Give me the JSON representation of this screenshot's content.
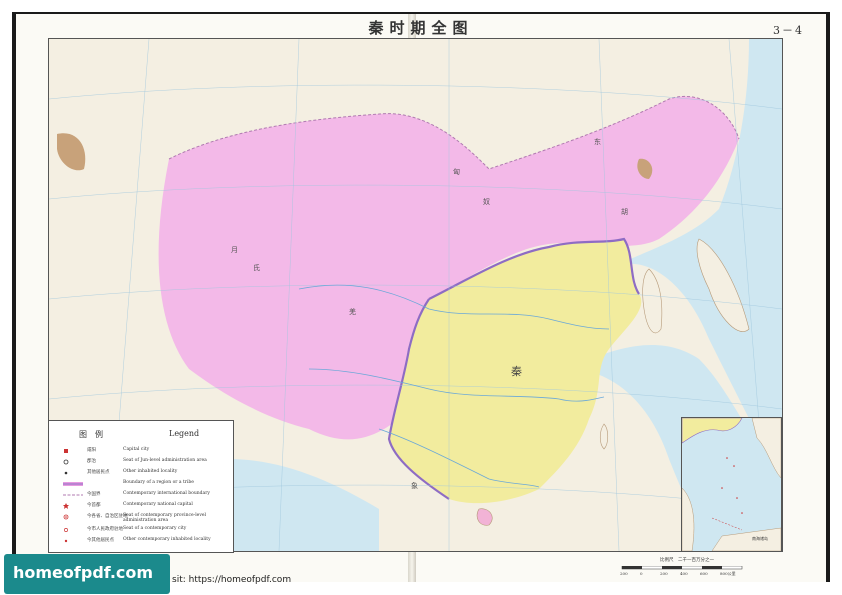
{
  "title": "秦时期全图",
  "plate_number": "3－4",
  "map": {
    "region_labels": [
      "匈",
      "奴",
      "东",
      "胡",
      "月",
      "氏",
      "秦",
      "羌",
      "象"
    ]
  },
  "legend": {
    "heading_cn": "图　例",
    "heading_en": "Legend",
    "items": [
      {
        "cn": "咸阳",
        "en": "Capital city"
      },
      {
        "cn": "郡治",
        "en": "Seat of Jun-level administration area"
      },
      {
        "cn": "其他居民点",
        "en": "Other inhabited locality"
      },
      {
        "cn": "",
        "en": "Boundary of a region or a tribe"
      },
      {
        "cn": "今国界",
        "en": "Contemporary international boundary"
      },
      {
        "cn": "今首都",
        "en": "Contemporary national capital"
      },
      {
        "cn": "今各省、自治区驻地",
        "en": "Seat of contemporary province-level administration area"
      },
      {
        "cn": "今市人民政府驻地",
        "en": "Seat of a contemporary city"
      },
      {
        "cn": "今其他居民点",
        "en": "Other contemporary inhabited locality"
      }
    ]
  },
  "scale": {
    "ratio": "比例尺　二千一百万分之一",
    "ticks": [
      "200",
      "0",
      "200",
      "400",
      "600",
      "800公里"
    ]
  },
  "inset_label": "南海诸岛",
  "watermark": {
    "brand": "homeofpdf.com",
    "visit_text": "sit: https://homeofpdf.com"
  },
  "colors": {
    "qin_territory": "#f2ec9e",
    "xiongnu_territory": "#f3b9e8",
    "land": "#f4efe2",
    "sea": "#cfe7f1",
    "boundary": "#8e6cc4"
  }
}
